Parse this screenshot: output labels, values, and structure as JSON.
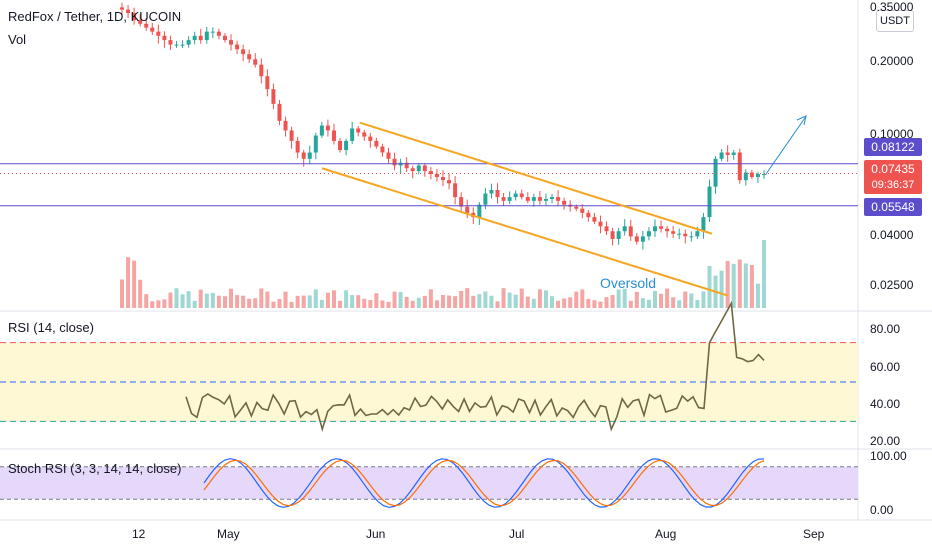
{
  "header": {
    "title": "RedFox / Tether, 1D, KUCOIN",
    "vol_label": "Vol",
    "currency_button": "USDT"
  },
  "price_axis": {
    "labels": [
      "0.35000",
      "0.20000",
      "0.10000",
      "0.04000",
      "0.02500"
    ]
  },
  "tags": {
    "upper_level": "0.08122",
    "last_price": "0.07435",
    "countdown": "09:36:37",
    "lower_level": "0.05548",
    "upper_color": "#5b4dcc",
    "last_color": "#ef5350",
    "lower_color": "#5b4dcc"
  },
  "annotation": {
    "oversold": "Oversold"
  },
  "rsi": {
    "label": "RSI (14, close)",
    "axis_labels": [
      "80.00",
      "60.00",
      "40.00",
      "20.00"
    ]
  },
  "stoch": {
    "label": "Stoch RSI (3, 3, 14, 14, close)",
    "axis_labels": [
      "100.00",
      "0.00"
    ]
  },
  "x_axis": {
    "labels": [
      "12",
      "May",
      "Jun",
      "Jul",
      "Aug",
      "Sep"
    ]
  },
  "chart_data": {
    "type": "candlestick",
    "symbol": "RedFox / Tether",
    "interval": "1D",
    "exchange": "KUCOIN",
    "y_scale": "log",
    "price_series": [
      0.33,
      0.32,
      0.3,
      0.29,
      0.28,
      0.27,
      0.26,
      0.25,
      0.24,
      0.24,
      0.24,
      0.25,
      0.26,
      0.25,
      0.27,
      0.27,
      0.26,
      0.25,
      0.24,
      0.23,
      0.22,
      0.21,
      0.2,
      0.18,
      0.16,
      0.14,
      0.12,
      0.11,
      0.1,
      0.09,
      0.085,
      0.09,
      0.105,
      0.115,
      0.11,
      0.1,
      0.092,
      0.1,
      0.112,
      0.108,
      0.104,
      0.1,
      0.095,
      0.09,
      0.085,
      0.08,
      0.082,
      0.078,
      0.076,
      0.08,
      0.076,
      0.074,
      0.072,
      0.07,
      0.068,
      0.06,
      0.055,
      0.052,
      0.05,
      0.056,
      0.062,
      0.064,
      0.06,
      0.058,
      0.06,
      0.062,
      0.06,
      0.058,
      0.06,
      0.058,
      0.059,
      0.06,
      0.058,
      0.056,
      0.055,
      0.054,
      0.052,
      0.05,
      0.048,
      0.046,
      0.044,
      0.041,
      0.044,
      0.046,
      0.042,
      0.04,
      0.042,
      0.044,
      0.046,
      0.045,
      0.044,
      0.043,
      0.043,
      0.042,
      0.042,
      0.044,
      0.05,
      0.066,
      0.085,
      0.09,
      0.088,
      0.09,
      0.07,
      0.075,
      0.072,
      0.074,
      0.074
    ],
    "levels": {
      "resistance": 0.08122,
      "support": 0.05548,
      "last": 0.07435
    },
    "rsi": {
      "overbought": 70,
      "middle": 50,
      "oversold": 30,
      "range": [
        20,
        80
      ]
    },
    "stoch_rsi": {
      "upper": 80,
      "lower": 20,
      "range": [
        0,
        100
      ]
    }
  }
}
